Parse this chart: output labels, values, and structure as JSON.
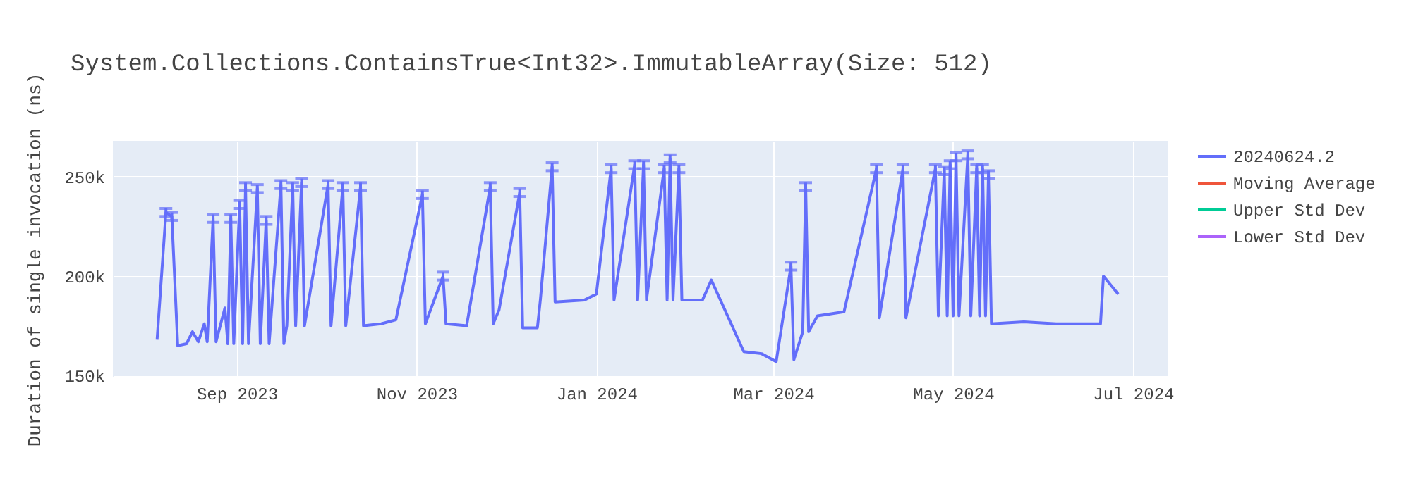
{
  "chart_data": {
    "type": "line",
    "title": "System.Collections.ContainsTrue<Int32>.ImmutableArray(Size: 512)",
    "ylabel": "Duration of single invocation (ns)",
    "x": [
      "2023-08-05",
      "2023-08-08",
      "2023-08-10",
      "2023-08-12",
      "2023-08-15",
      "2023-08-17",
      "2023-08-19",
      "2023-08-21",
      "2023-08-22",
      "2023-08-24",
      "2023-08-25",
      "2023-08-28",
      "2023-08-29",
      "2023-08-30",
      "2023-08-31",
      "2023-09-02",
      "2023-09-03",
      "2023-09-04",
      "2023-09-05",
      "2023-09-08",
      "2023-09-09",
      "2023-09-11",
      "2023-09-12",
      "2023-09-16",
      "2023-09-17",
      "2023-09-18",
      "2023-09-20",
      "2023-09-21",
      "2023-09-23",
      "2023-09-24",
      "2023-10-02",
      "2023-10-03",
      "2023-10-07",
      "2023-10-08",
      "2023-10-13",
      "2023-10-14",
      "2023-10-20",
      "2023-10-25",
      "2023-11-03",
      "2023-11-04",
      "2023-11-10",
      "2023-11-11",
      "2023-11-18",
      "2023-11-26",
      "2023-11-27",
      "2023-11-29",
      "2023-12-06",
      "2023-12-07",
      "2023-12-12",
      "2023-12-13",
      "2023-12-17",
      "2023-12-18",
      "2023-12-28",
      "2024-01-01",
      "2024-01-06",
      "2024-01-07",
      "2024-01-14",
      "2024-01-15",
      "2024-01-17",
      "2024-01-18",
      "2024-01-24",
      "2024-01-25",
      "2024-01-26",
      "2024-01-27",
      "2024-01-29",
      "2024-01-30",
      "2024-02-06",
      "2024-02-09",
      "2024-02-20",
      "2024-02-26",
      "2024-03-02",
      "2024-03-07",
      "2024-03-08",
      "2024-03-11",
      "2024-03-12",
      "2024-03-13",
      "2024-03-16",
      "2024-03-25",
      "2024-04-05",
      "2024-04-06",
      "2024-04-14",
      "2024-04-15",
      "2024-04-25",
      "2024-04-26",
      "2024-04-28",
      "2024-04-29",
      "2024-04-30",
      "2024-05-01",
      "2024-05-02",
      "2024-05-03",
      "2024-05-06",
      "2024-05-07",
      "2024-05-09",
      "2024-05-10",
      "2024-05-11",
      "2024-05-12",
      "2024-05-13",
      "2024-05-14",
      "2024-05-25",
      "2024-06-05",
      "2024-06-20",
      "2024-06-21",
      "2024-06-26"
    ],
    "series": [
      {
        "name": "20240624.2",
        "color": "#636efa",
        "values": [
          168000,
          232000,
          230000,
          165000,
          166000,
          172000,
          167000,
          176000,
          167000,
          229000,
          167000,
          184000,
          166000,
          229000,
          166000,
          236000,
          166000,
          245000,
          166000,
          244000,
          166000,
          228000,
          166000,
          246000,
          166000,
          175000,
          245000,
          175000,
          247000,
          175000,
          246000,
          175000,
          245000,
          175000,
          245000,
          175000,
          176000,
          178000,
          241000,
          176000,
          200000,
          176000,
          175000,
          245000,
          176000,
          183000,
          242000,
          174000,
          174000,
          188000,
          255000,
          187000,
          188000,
          191000,
          254000,
          188000,
          256000,
          188000,
          256000,
          188000,
          254000,
          188000,
          259000,
          188000,
          254000,
          188000,
          188000,
          198000,
          162000,
          161000,
          157000,
          205000,
          158000,
          172000,
          245000,
          172000,
          180000,
          182000,
          254000,
          179000,
          254000,
          179000,
          254000,
          180000,
          253000,
          180000,
          256000,
          180000,
          260000,
          180000,
          261000,
          180000,
          254000,
          180000,
          254000,
          180000,
          251000,
          176000,
          177000,
          176000,
          176000,
          200000,
          191000
        ],
        "errors": [
          null,
          2000,
          2000,
          null,
          null,
          null,
          null,
          null,
          null,
          2000,
          null,
          null,
          null,
          2000,
          null,
          2000,
          null,
          2000,
          null,
          2000,
          null,
          2000,
          null,
          2000,
          null,
          null,
          2000,
          null,
          2000,
          null,
          2000,
          null,
          2000,
          null,
          2000,
          null,
          null,
          null,
          2000,
          null,
          2000,
          null,
          null,
          2000,
          null,
          null,
          2000,
          null,
          null,
          null,
          2000,
          null,
          null,
          null,
          2000,
          null,
          2000,
          null,
          2000,
          null,
          2000,
          null,
          2000,
          null,
          2000,
          null,
          null,
          null,
          null,
          null,
          null,
          2000,
          null,
          null,
          2000,
          null,
          null,
          null,
          2000,
          null,
          2000,
          null,
          2000,
          null,
          2000,
          null,
          2000,
          null,
          2000,
          null,
          2000,
          null,
          2000,
          null,
          2000,
          null,
          2000,
          null,
          null,
          null,
          null,
          null,
          null
        ]
      },
      {
        "name": "Moving Average",
        "color": "#ef553b",
        "values": [
          null,
          null,
          null,
          null,
          null,
          null,
          null,
          null,
          null,
          null,
          null,
          null,
          null,
          null,
          null,
          null,
          null,
          null,
          null,
          null,
          null,
          null,
          null,
          null,
          null,
          null,
          null,
          null,
          null,
          null,
          null,
          null,
          null,
          null,
          null,
          null,
          null,
          null,
          null,
          null,
          null,
          null,
          null,
          null,
          null,
          null,
          null,
          null,
          null,
          null,
          null,
          null,
          null,
          null,
          null,
          null,
          null,
          null,
          null,
          null,
          null,
          null,
          null,
          null,
          null,
          null,
          null,
          null,
          null,
          null,
          null,
          null,
          null,
          null,
          null,
          null,
          null,
          null,
          null,
          null,
          null,
          null,
          null,
          null,
          null,
          null,
          null,
          null,
          null,
          null,
          null,
          null,
          null,
          null,
          null,
          null,
          null,
          null,
          null,
          null,
          null,
          null,
          null
        ]
      },
      {
        "name": "Upper Std Dev",
        "color": "#00cc96",
        "values": [
          null,
          null,
          null,
          null,
          null,
          null,
          null,
          null,
          null,
          null,
          null,
          null,
          null,
          null,
          null,
          null,
          null,
          null,
          null,
          null,
          null,
          null,
          null,
          null,
          null,
          null,
          null,
          null,
          null,
          null,
          null,
          null,
          null,
          null,
          null,
          null,
          null,
          null,
          null,
          null,
          null,
          null,
          null,
          null,
          null,
          null,
          null,
          null,
          null,
          null,
          null,
          null,
          null,
          null,
          null,
          null,
          null,
          null,
          null,
          null,
          null,
          null,
          null,
          null,
          null,
          null,
          null,
          null,
          null,
          null,
          null,
          null,
          null,
          null,
          null,
          null,
          null,
          null,
          null,
          null,
          null,
          null,
          null,
          null,
          null,
          null,
          null,
          null,
          null,
          null,
          null,
          null,
          null,
          null,
          null,
          null,
          null,
          null,
          null,
          null,
          null,
          null,
          null
        ]
      },
      {
        "name": "Lower Std Dev",
        "color": "#ab63fa",
        "values": [
          null,
          null,
          null,
          null,
          null,
          null,
          null,
          null,
          null,
          null,
          null,
          null,
          null,
          null,
          null,
          null,
          null,
          null,
          null,
          null,
          null,
          null,
          null,
          null,
          null,
          null,
          null,
          null,
          null,
          null,
          null,
          null,
          null,
          null,
          null,
          null,
          null,
          null,
          null,
          null,
          null,
          null,
          null,
          null,
          null,
          null,
          null,
          null,
          null,
          null,
          null,
          null,
          null,
          null,
          null,
          null,
          null,
          null,
          null,
          null,
          null,
          null,
          null,
          null,
          null,
          null,
          null,
          null,
          null,
          null,
          null,
          null,
          null,
          null,
          null,
          null,
          null,
          null,
          null,
          null,
          null,
          null,
          null,
          null,
          null,
          null,
          null,
          null,
          null,
          null,
          null,
          null,
          null,
          null,
          null,
          null,
          null,
          null,
          null,
          null,
          null,
          null,
          null
        ]
      }
    ],
    "xlim": [
      "2023-07-21",
      "2024-07-13"
    ],
    "xticks": [
      {
        "value": "2023-09-01",
        "label": "Sep 2023"
      },
      {
        "value": "2023-11-01",
        "label": "Nov 2023"
      },
      {
        "value": "2024-01-01",
        "label": "Jan 2024"
      },
      {
        "value": "2024-03-01",
        "label": "Mar 2024"
      },
      {
        "value": "2024-05-01",
        "label": "May 2024"
      },
      {
        "value": "2024-07-01",
        "label": "Jul 2024"
      }
    ],
    "ylim": [
      149000,
      268000
    ],
    "yticks": [
      {
        "value": 150000,
        "label": "150k"
      },
      {
        "value": 200000,
        "label": "200k"
      },
      {
        "value": 250000,
        "label": "250k"
      }
    ],
    "grid": true,
    "legend": "top right",
    "line_style": "solid",
    "marker": "none"
  }
}
